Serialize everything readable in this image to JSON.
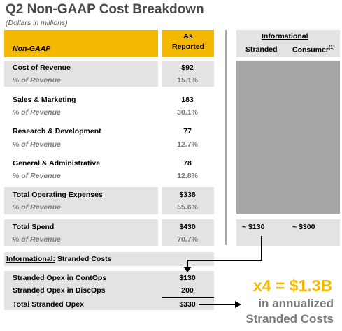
{
  "title": "Q2 Non-GAAP Cost Breakdown",
  "subtitle": "(Dollars in millions)",
  "header": {
    "left_label": "Non-GAAP",
    "col_as": "As",
    "col_reported": "Reported",
    "informational": "Informational",
    "stranded": "Stranded",
    "consumer": "Consumer",
    "consumer_footnote": "(1)"
  },
  "rows": [
    {
      "label": "Cost of Revenue",
      "value": "$92",
      "pct_label": "% of Revenue",
      "pct": "15.1%"
    },
    {
      "label": "Sales & Marketing",
      "value": "183",
      "pct_label": "% of Revenue",
      "pct": "30.1%"
    },
    {
      "label": "Research & Development",
      "value": "77",
      "pct_label": "% of Revenue",
      "pct": "12.7%"
    },
    {
      "label": "General & Administrative",
      "value": "78",
      "pct_label": "% of Revenue",
      "pct": "12.8%"
    },
    {
      "label": "Total Operating Expenses",
      "value": "$338",
      "pct_label": "% of Revenue",
      "pct": "55.6%"
    },
    {
      "label": "Total Spend",
      "value": "$430",
      "pct_label": "% of Revenue",
      "pct": "70.7%",
      "stranded": "~ $130",
      "consumer": "~ $300"
    }
  ],
  "stranded_section": {
    "header_underlined": "Informational:",
    "header_rest": " Stranded Costs",
    "rows": [
      {
        "label": "Stranded Opex in ContOps",
        "value": "$130"
      },
      {
        "label": "Stranded Opex in DiscOps",
        "value": "200"
      },
      {
        "label": "Total Stranded Opex",
        "value": "$330"
      }
    ]
  },
  "callout": {
    "headline": "x4 = $1.3B",
    "line1": "in annualized",
    "line2": "Stranded Costs"
  },
  "colors": {
    "accent_yellow": "#f5b800",
    "band_gray": "#e3e3e3",
    "block_gray": "#a6a6a6",
    "muted_text": "#7a7a7a"
  }
}
